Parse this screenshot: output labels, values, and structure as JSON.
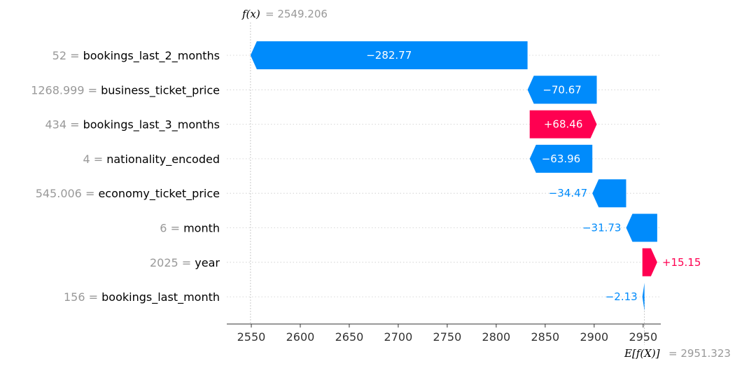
{
  "chart_data": {
    "type": "waterfall",
    "title": "",
    "xlabel": "",
    "ylabel": "",
    "f_x": {
      "label": "f(x)",
      "value": "2549.206"
    },
    "expected_value": {
      "label": "E[f(X)]",
      "value": "2951.323"
    },
    "base_value": 2951.323,
    "output_value": 2549.206,
    "xlim": [
      2525,
      2968
    ],
    "xticks": [
      "2550",
      "2600",
      "2650",
      "2700",
      "2750",
      "2800",
      "2850",
      "2900",
      "2950"
    ],
    "features": [
      {
        "value": "52",
        "name": "bookings_last_2_months",
        "shap": -282.77,
        "label": "−282.77"
      },
      {
        "value": "1268.999",
        "name": "business_ticket_price",
        "shap": -70.67,
        "label": "−70.67"
      },
      {
        "value": "434",
        "name": "bookings_last_3_months",
        "shap": 68.46,
        "label": "+68.46"
      },
      {
        "value": "4",
        "name": "nationality_encoded",
        "shap": -63.96,
        "label": "−63.96"
      },
      {
        "value": "545.006",
        "name": "economy_ticket_price",
        "shap": -34.47,
        "label": "−34.47"
      },
      {
        "value": "6",
        "name": "month",
        "shap": -31.73,
        "label": "−31.73"
      },
      {
        "value": "2025",
        "name": "year",
        "shap": 15.15,
        "label": "+15.15"
      },
      {
        "value": "156",
        "name": "bookings_last_month",
        "shap": -2.13,
        "label": "−2.13"
      }
    ],
    "colors": {
      "negative": "#008bfb",
      "positive": "#ff0051",
      "text_gray": "#999999",
      "grid": "#cccccc"
    },
    "grid": true
  }
}
